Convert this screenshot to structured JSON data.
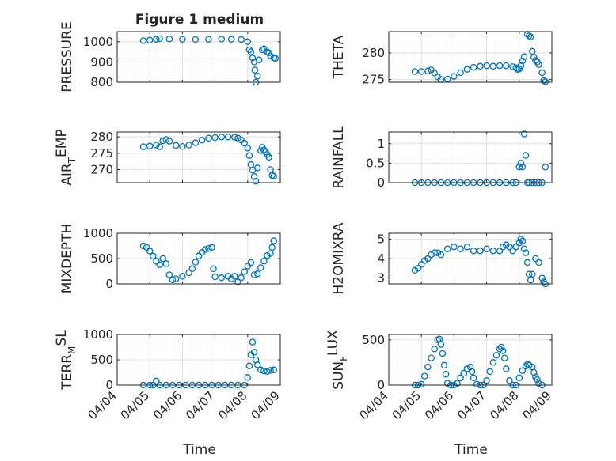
{
  "figure_title": "Figure 1 medium",
  "x_tick_labels": [
    "04/04",
    "04/05",
    "04/06",
    "04/07",
    "04/08",
    "04/09"
  ],
  "x_axis_label": "Time",
  "colors": {
    "marker": "#0072BD",
    "axes": "#262626",
    "grid": "#d9d9d9",
    "background": "#ffffff"
  },
  "chart_data": [
    {
      "type": "scatter",
      "ylabel_main": "PRESSURE",
      "ylabel_sub": "",
      "ylim": [
        800,
        1050
      ],
      "yticks": [
        800,
        900,
        1000
      ],
      "ytick_labels": [
        "800",
        "900",
        "1000"
      ],
      "xlim": [
        0,
        5
      ],
      "grid": true,
      "points": [
        [
          0.8,
          1005
        ],
        [
          1.0,
          1008
        ],
        [
          1.2,
          1012
        ],
        [
          1.3,
          1015
        ],
        [
          1.6,
          1014
        ],
        [
          2.0,
          1012
        ],
        [
          2.4,
          1011
        ],
        [
          2.8,
          1012
        ],
        [
          3.2,
          1013
        ],
        [
          3.5,
          1012
        ],
        [
          3.8,
          1011
        ],
        [
          4.0,
          1000
        ],
        [
          4.05,
          960
        ],
        [
          4.1,
          950
        ],
        [
          4.15,
          920
        ],
        [
          4.2,
          900
        ],
        [
          4.22,
          860
        ],
        [
          4.25,
          800
        ],
        [
          4.3,
          830
        ],
        [
          4.35,
          910
        ],
        [
          4.45,
          960
        ],
        [
          4.5,
          965
        ],
        [
          4.6,
          950
        ],
        [
          4.65,
          945
        ],
        [
          4.7,
          930
        ],
        [
          4.8,
          920
        ],
        [
          4.85,
          918
        ]
      ]
    },
    {
      "type": "scatter",
      "ylabel_main": "THETA",
      "ylabel_sub": "",
      "ylim": [
        274.5,
        284
      ],
      "yticks": [
        275,
        280
      ],
      "ytick_labels": [
        "275",
        "280"
      ],
      "xlim": [
        0,
        5
      ],
      "grid": true,
      "points": [
        [
          0.8,
          276.5
        ],
        [
          1.0,
          276.5
        ],
        [
          1.2,
          276.6
        ],
        [
          1.3,
          276.8
        ],
        [
          1.4,
          276.2
        ],
        [
          1.5,
          275.5
        ],
        [
          1.6,
          275.0
        ],
        [
          1.8,
          275.1
        ],
        [
          2.0,
          275.6
        ],
        [
          2.2,
          276.3
        ],
        [
          2.4,
          276.9
        ],
        [
          2.6,
          277.3
        ],
        [
          2.8,
          277.5
        ],
        [
          3.0,
          277.6
        ],
        [
          3.2,
          277.5
        ],
        [
          3.4,
          277.6
        ],
        [
          3.6,
          277.6
        ],
        [
          3.8,
          277.4
        ],
        [
          3.9,
          277.2
        ],
        [
          3.95,
          276.9
        ],
        [
          4.0,
          277.0
        ],
        [
          4.05,
          277.6
        ],
        [
          4.1,
          278.5
        ],
        [
          4.15,
          279.3
        ],
        [
          4.25,
          283.5
        ],
        [
          4.3,
          283.2
        ],
        [
          4.35,
          283.0
        ],
        [
          4.4,
          280.3
        ],
        [
          4.45,
          279.2
        ],
        [
          4.5,
          278.6
        ],
        [
          4.55,
          278.3
        ],
        [
          4.6,
          277.8
        ],
        [
          4.7,
          276.3
        ],
        [
          4.75,
          274.8
        ],
        [
          4.8,
          274.6
        ]
      ]
    },
    {
      "type": "scatter",
      "ylabel_main": "AIR",
      "ylabel_sub": "T",
      "ylabel_after": "EMP",
      "ylim": [
        266,
        281.5
      ],
      "yticks": [
        270,
        275,
        280
      ],
      "ytick_labels": [
        "270",
        "275",
        "280"
      ],
      "xlim": [
        0,
        5
      ],
      "grid": true,
      "points": [
        [
          0.8,
          277
        ],
        [
          1.0,
          277.2
        ],
        [
          1.2,
          277.5
        ],
        [
          1.3,
          277.0
        ],
        [
          1.4,
          278.8
        ],
        [
          1.5,
          279.2
        ],
        [
          1.6,
          278.7
        ],
        [
          1.8,
          277.4
        ],
        [
          2.0,
          277.1
        ],
        [
          2.2,
          277.5
        ],
        [
          2.4,
          278.2
        ],
        [
          2.6,
          279.0
        ],
        [
          2.8,
          279.6
        ],
        [
          3.0,
          279.8
        ],
        [
          3.2,
          280.0
        ],
        [
          3.4,
          280.0
        ],
        [
          3.6,
          279.9
        ],
        [
          3.7,
          279.6
        ],
        [
          3.8,
          279.0
        ],
        [
          3.9,
          278.1
        ],
        [
          4.0,
          276.6
        ],
        [
          4.05,
          274.3
        ],
        [
          4.1,
          271.5
        ],
        [
          4.15,
          269.8
        ],
        [
          4.2,
          267.9
        ],
        [
          4.25,
          266.4
        ],
        [
          4.3,
          270.5
        ],
        [
          4.4,
          275.8
        ],
        [
          4.45,
          276.8
        ],
        [
          4.5,
          276.0
        ],
        [
          4.55,
          275.4
        ],
        [
          4.6,
          274.6
        ],
        [
          4.65,
          273.8
        ],
        [
          4.7,
          270.0
        ],
        [
          4.75,
          268.2
        ],
        [
          4.8,
          268.0
        ]
      ]
    },
    {
      "type": "scatter",
      "ylabel_main": "RAINFALL",
      "ylabel_sub": "",
      "ylim": [
        0,
        1.3
      ],
      "yticks": [
        0,
        0.5,
        1
      ],
      "ytick_labels": [
        "0",
        "0.5",
        "1"
      ],
      "xlim": [
        0,
        5
      ],
      "grid": true,
      "points": [
        [
          0.8,
          0
        ],
        [
          1.0,
          0
        ],
        [
          1.2,
          0
        ],
        [
          1.4,
          0
        ],
        [
          1.6,
          0
        ],
        [
          1.8,
          0
        ],
        [
          2.0,
          0
        ],
        [
          2.2,
          0
        ],
        [
          2.4,
          0
        ],
        [
          2.6,
          0
        ],
        [
          2.8,
          0
        ],
        [
          3.0,
          0
        ],
        [
          3.2,
          0
        ],
        [
          3.4,
          0
        ],
        [
          3.6,
          0
        ],
        [
          3.8,
          0
        ],
        [
          3.9,
          0
        ],
        [
          4.0,
          0.4
        ],
        [
          4.05,
          0.5
        ],
        [
          4.1,
          0.4
        ],
        [
          4.15,
          1.25
        ],
        [
          4.2,
          0.7
        ],
        [
          4.25,
          0
        ],
        [
          4.3,
          0
        ],
        [
          4.4,
          0
        ],
        [
          4.5,
          0
        ],
        [
          4.6,
          0
        ],
        [
          4.7,
          0
        ],
        [
          4.8,
          0.4
        ]
      ]
    },
    {
      "type": "scatter",
      "ylabel_main": "MIXDEPTH",
      "ylabel_sub": "",
      "ylim": [
        0,
        1000
      ],
      "yticks": [
        0,
        500,
        1000
      ],
      "ytick_labels": [
        "0",
        "500",
        "1000"
      ],
      "xlim": [
        0,
        5
      ],
      "grid": true,
      "points": [
        [
          0.8,
          750
        ],
        [
          0.9,
          720
        ],
        [
          1.0,
          650
        ],
        [
          1.1,
          550
        ],
        [
          1.2,
          450
        ],
        [
          1.3,
          380
        ],
        [
          1.4,
          500
        ],
        [
          1.5,
          400
        ],
        [
          1.6,
          180
        ],
        [
          1.7,
          80
        ],
        [
          1.8,
          100
        ],
        [
          2.0,
          150
        ],
        [
          2.2,
          220
        ],
        [
          2.3,
          300
        ],
        [
          2.4,
          430
        ],
        [
          2.5,
          550
        ],
        [
          2.6,
          620
        ],
        [
          2.7,
          680
        ],
        [
          2.8,
          700
        ],
        [
          2.9,
          720
        ],
        [
          2.95,
          300
        ],
        [
          3.0,
          140
        ],
        [
          3.2,
          120
        ],
        [
          3.4,
          150
        ],
        [
          3.5,
          100
        ],
        [
          3.6,
          150
        ],
        [
          3.7,
          40
        ],
        [
          3.8,
          120
        ],
        [
          3.9,
          240
        ],
        [
          4.0,
          350
        ],
        [
          4.1,
          420
        ],
        [
          4.2,
          180
        ],
        [
          4.3,
          200
        ],
        [
          4.4,
          320
        ],
        [
          4.5,
          450
        ],
        [
          4.6,
          560
        ],
        [
          4.7,
          600
        ],
        [
          4.75,
          720
        ],
        [
          4.8,
          850
        ]
      ]
    },
    {
      "type": "scatter",
      "ylabel_main": "H2OMIXRA",
      "ylabel_sub": "",
      "ylim": [
        2.7,
        5.3
      ],
      "yticks": [
        3,
        4,
        5
      ],
      "ytick_labels": [
        "3",
        "4",
        "5"
      ],
      "xlim": [
        0,
        5
      ],
      "grid": true,
      "points": [
        [
          0.8,
          3.4
        ],
        [
          0.9,
          3.5
        ],
        [
          1.0,
          3.7
        ],
        [
          1.1,
          3.9
        ],
        [
          1.2,
          4.0
        ],
        [
          1.3,
          4.2
        ],
        [
          1.4,
          4.3
        ],
        [
          1.5,
          4.3
        ],
        [
          1.6,
          4.2
        ],
        [
          1.8,
          4.5
        ],
        [
          2.0,
          4.6
        ],
        [
          2.2,
          4.5
        ],
        [
          2.4,
          4.6
        ],
        [
          2.6,
          4.4
        ],
        [
          2.8,
          4.4
        ],
        [
          3.0,
          4.5
        ],
        [
          3.2,
          4.4
        ],
        [
          3.4,
          4.4
        ],
        [
          3.5,
          4.6
        ],
        [
          3.6,
          4.7
        ],
        [
          3.7,
          4.6
        ],
        [
          3.8,
          4.4
        ],
        [
          3.9,
          4.6
        ],
        [
          4.0,
          4.8
        ],
        [
          4.05,
          5.0
        ],
        [
          4.1,
          4.9
        ],
        [
          4.15,
          4.5
        ],
        [
          4.2,
          4.3
        ],
        [
          4.25,
          3.8
        ],
        [
          4.3,
          3.2
        ],
        [
          4.35,
          2.9
        ],
        [
          4.4,
          3.2
        ],
        [
          4.5,
          4.0
        ],
        [
          4.6,
          3.8
        ],
        [
          4.7,
          3.0
        ],
        [
          4.75,
          2.8
        ],
        [
          4.8,
          2.7
        ]
      ]
    },
    {
      "type": "scatter",
      "ylabel_main": "TERR",
      "ylabel_sub": "M",
      "ylabel_after": "SL",
      "ylim": [
        0,
        1000
      ],
      "yticks": [
        0,
        500,
        1000
      ],
      "ytick_labels": [
        "0",
        "500",
        "1000"
      ],
      "xlim": [
        0,
        5
      ],
      "grid": true,
      "points": [
        [
          0.8,
          0
        ],
        [
          1.0,
          0
        ],
        [
          1.1,
          0
        ],
        [
          1.2,
          80
        ],
        [
          1.3,
          0
        ],
        [
          1.5,
          0
        ],
        [
          1.7,
          0
        ],
        [
          1.9,
          0
        ],
        [
          2.1,
          0
        ],
        [
          2.3,
          0
        ],
        [
          2.5,
          0
        ],
        [
          2.7,
          0
        ],
        [
          2.9,
          0
        ],
        [
          3.1,
          0
        ],
        [
          3.3,
          0
        ],
        [
          3.5,
          0
        ],
        [
          3.7,
          0
        ],
        [
          3.9,
          0
        ],
        [
          4.0,
          150
        ],
        [
          4.05,
          380
        ],
        [
          4.1,
          600
        ],
        [
          4.15,
          850
        ],
        [
          4.2,
          650
        ],
        [
          4.25,
          500
        ],
        [
          4.3,
          400
        ],
        [
          4.4,
          300
        ],
        [
          4.5,
          280
        ],
        [
          4.6,
          270
        ],
        [
          4.7,
          290
        ],
        [
          4.8,
          300
        ]
      ]
    },
    {
      "type": "scatter",
      "ylabel_main": "SUN",
      "ylabel_sub": "F",
      "ylabel_after": "LUX",
      "ylim": [
        0,
        560
      ],
      "yticks": [
        0,
        500
      ],
      "ytick_labels": [
        "0",
        "500"
      ],
      "xlim": [
        0,
        5
      ],
      "grid": true,
      "points": [
        [
          0.8,
          0
        ],
        [
          0.9,
          0
        ],
        [
          1.0,
          10
        ],
        [
          1.1,
          100
        ],
        [
          1.2,
          200
        ],
        [
          1.3,
          300
        ],
        [
          1.4,
          400
        ],
        [
          1.5,
          500
        ],
        [
          1.55,
          510
        ],
        [
          1.6,
          450
        ],
        [
          1.65,
          350
        ],
        [
          1.7,
          220
        ],
        [
          1.75,
          120
        ],
        [
          1.8,
          20
        ],
        [
          1.9,
          0
        ],
        [
          2.0,
          0
        ],
        [
          2.1,
          20
        ],
        [
          2.2,
          80
        ],
        [
          2.3,
          130
        ],
        [
          2.4,
          180
        ],
        [
          2.5,
          200
        ],
        [
          2.55,
          150
        ],
        [
          2.6,
          80
        ],
        [
          2.7,
          10
        ],
        [
          2.8,
          0
        ],
        [
          2.9,
          0
        ],
        [
          3.0,
          50
        ],
        [
          3.1,
          150
        ],
        [
          3.2,
          250
        ],
        [
          3.3,
          330
        ],
        [
          3.4,
          400
        ],
        [
          3.45,
          420
        ],
        [
          3.5,
          380
        ],
        [
          3.55,
          300
        ],
        [
          3.6,
          180
        ],
        [
          3.7,
          50
        ],
        [
          3.8,
          0
        ],
        [
          3.9,
          0
        ],
        [
          4.0,
          80
        ],
        [
          4.1,
          160
        ],
        [
          4.2,
          210
        ],
        [
          4.25,
          230
        ],
        [
          4.3,
          220
        ],
        [
          4.4,
          200
        ],
        [
          4.45,
          140
        ],
        [
          4.5,
          90
        ],
        [
          4.55,
          60
        ],
        [
          4.6,
          20
        ],
        [
          4.7,
          0
        ]
      ]
    }
  ]
}
